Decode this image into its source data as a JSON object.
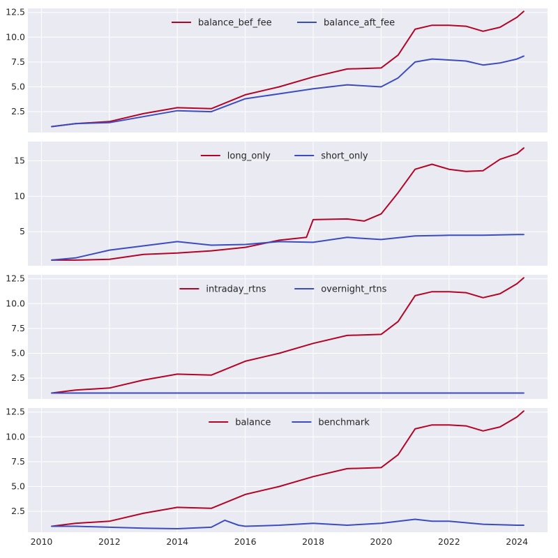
{
  "colors": {
    "red": "#b40426",
    "blue": "#3b4cc0",
    "panel_bg": "#eaeaf2",
    "grid": "#ffffff"
  },
  "chart_data": [
    {
      "type": "line",
      "ylim": [
        0.4,
        12.9
      ],
      "y_ticks": [
        2.5,
        5.0,
        7.5,
        10.0,
        12.5
      ],
      "y_tick_labels": [
        "2.5",
        "5.0",
        "7.5",
        "10.0",
        "12.5"
      ],
      "legend_position": "top-center",
      "grid": true,
      "series": [
        {
          "name": "balance_bef_fee",
          "color": "#b40426",
          "x": [
            2010.3,
            2011,
            2012,
            2013,
            2014,
            2015,
            2016,
            2017,
            2018,
            2019,
            2020,
            2020.5,
            2021,
            2021.5,
            2022,
            2022.5,
            2023,
            2023.5,
            2024,
            2024.2
          ],
          "y": [
            1.0,
            1.3,
            1.5,
            2.3,
            2.9,
            2.8,
            4.2,
            5.0,
            6.0,
            6.8,
            6.9,
            8.2,
            10.8,
            11.2,
            11.2,
            11.1,
            10.6,
            11.0,
            12.0,
            12.6
          ]
        },
        {
          "name": "balance_aft_fee",
          "color": "#3b4cc0",
          "x": [
            2010.3,
            2011,
            2012,
            2013,
            2014,
            2015,
            2016,
            2017,
            2018,
            2019,
            2020,
            2020.5,
            2021,
            2021.5,
            2022,
            2022.5,
            2023,
            2023.5,
            2024,
            2024.2
          ],
          "y": [
            1.0,
            1.3,
            1.4,
            2.0,
            2.6,
            2.5,
            3.8,
            4.3,
            4.8,
            5.2,
            5.0,
            5.9,
            7.5,
            7.8,
            7.7,
            7.6,
            7.2,
            7.4,
            7.8,
            8.1
          ]
        }
      ]
    },
    {
      "type": "line",
      "ylim": [
        0.2,
        17.7
      ],
      "y_ticks": [
        5,
        10,
        15
      ],
      "y_tick_labels": [
        "5",
        "10",
        "15"
      ],
      "legend_position": "top-center",
      "grid": true,
      "series": [
        {
          "name": "long_only",
          "color": "#b40426",
          "x": [
            2010.3,
            2011,
            2012,
            2013,
            2014,
            2015,
            2016,
            2017,
            2017.8,
            2018,
            2019,
            2019.5,
            2020,
            2020.5,
            2021,
            2021.5,
            2022,
            2022.5,
            2023,
            2023.5,
            2024,
            2024.2
          ],
          "y": [
            1.0,
            1.0,
            1.1,
            1.8,
            2.0,
            2.3,
            2.8,
            3.8,
            4.2,
            6.7,
            6.8,
            6.5,
            7.5,
            10.5,
            13.8,
            14.5,
            13.8,
            13.5,
            13.6,
            15.2,
            16.0,
            16.8
          ]
        },
        {
          "name": "short_only",
          "color": "#3b4cc0",
          "x": [
            2010.3,
            2011,
            2012,
            2013,
            2014,
            2015,
            2016,
            2017,
            2018,
            2019,
            2020,
            2021,
            2022,
            2023,
            2024,
            2024.2
          ],
          "y": [
            1.0,
            1.3,
            2.4,
            3.0,
            3.6,
            3.1,
            3.2,
            3.6,
            3.5,
            4.2,
            3.9,
            4.4,
            4.5,
            4.5,
            4.6,
            4.6
          ]
        }
      ]
    },
    {
      "type": "line",
      "ylim": [
        0.4,
        12.9
      ],
      "y_ticks": [
        2.5,
        5.0,
        7.5,
        10.0,
        12.5
      ],
      "y_tick_labels": [
        "2.5",
        "5.0",
        "7.5",
        "10.0",
        "12.5"
      ],
      "legend_position": "top-center",
      "grid": true,
      "series": [
        {
          "name": "intraday_rtns",
          "color": "#b40426",
          "x": [
            2010.3,
            2011,
            2012,
            2013,
            2014,
            2015,
            2016,
            2017,
            2018,
            2019,
            2020,
            2020.5,
            2021,
            2021.5,
            2022,
            2022.5,
            2023,
            2023.5,
            2024,
            2024.2
          ],
          "y": [
            1.0,
            1.3,
            1.5,
            2.3,
            2.9,
            2.8,
            4.2,
            5.0,
            6.0,
            6.8,
            6.9,
            8.2,
            10.8,
            11.2,
            11.2,
            11.1,
            10.6,
            11.0,
            12.0,
            12.6
          ]
        },
        {
          "name": "overnight_rtns",
          "color": "#3b4cc0",
          "x": [
            2010.3,
            2024.2
          ],
          "y": [
            1.0,
            1.0
          ]
        }
      ]
    },
    {
      "type": "line",
      "ylim": [
        0.4,
        12.9
      ],
      "y_ticks": [
        2.5,
        5.0,
        7.5,
        10.0,
        12.5
      ],
      "y_tick_labels": [
        "2.5",
        "5.0",
        "7.5",
        "10.0",
        "12.5"
      ],
      "x_ticks": [
        2010,
        2012,
        2014,
        2016,
        2018,
        2020,
        2022,
        2024
      ],
      "x_tick_labels": [
        "2010",
        "2012",
        "2014",
        "2016",
        "2018",
        "2020",
        "2022",
        "2024"
      ],
      "legend_position": "top-center",
      "grid": true,
      "series": [
        {
          "name": "balance",
          "color": "#b40426",
          "x": [
            2010.3,
            2011,
            2012,
            2013,
            2014,
            2015,
            2016,
            2017,
            2018,
            2019,
            2020,
            2020.5,
            2021,
            2021.5,
            2022,
            2022.5,
            2023,
            2023.5,
            2024,
            2024.2
          ],
          "y": [
            1.0,
            1.3,
            1.5,
            2.3,
            2.9,
            2.8,
            4.2,
            5.0,
            6.0,
            6.8,
            6.9,
            8.2,
            10.8,
            11.2,
            11.2,
            11.1,
            10.6,
            11.0,
            12.0,
            12.6
          ]
        },
        {
          "name": "benchmark",
          "color": "#3b4cc0",
          "x": [
            2010.3,
            2011,
            2012,
            2013,
            2014,
            2015,
            2015.4,
            2015.8,
            2016,
            2017,
            2018,
            2019,
            2020,
            2021,
            2021.5,
            2022,
            2023,
            2024,
            2024.2
          ],
          "y": [
            1.0,
            1.0,
            0.9,
            0.8,
            0.75,
            0.9,
            1.6,
            1.1,
            1.0,
            1.1,
            1.3,
            1.1,
            1.3,
            1.7,
            1.5,
            1.5,
            1.2,
            1.1,
            1.1
          ]
        }
      ]
    }
  ]
}
